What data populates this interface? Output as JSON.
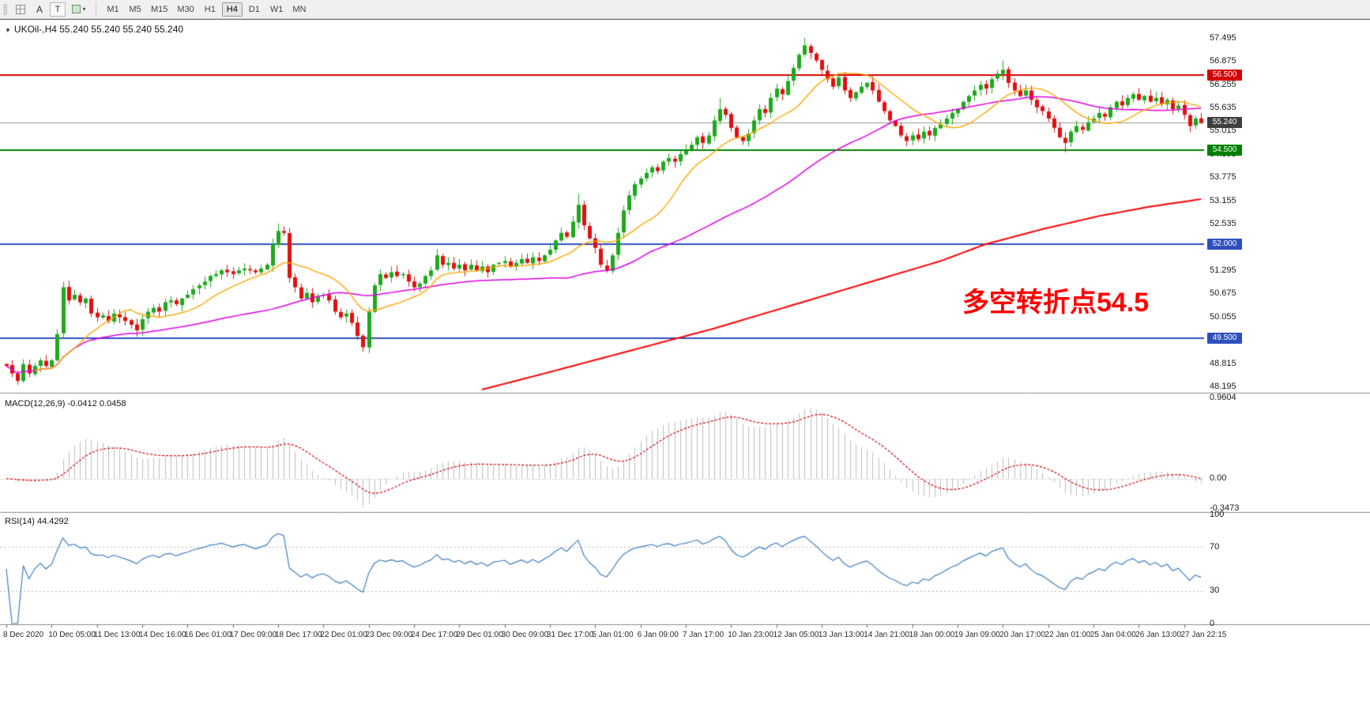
{
  "toolbar": {
    "tool_a": "A",
    "tool_t": "T",
    "caret": "▾",
    "timeframes": [
      "M1",
      "M5",
      "M15",
      "M30",
      "H1",
      "H4",
      "D1",
      "W1",
      "MN"
    ],
    "selected_timeframe": "H4"
  },
  "main_chart": {
    "title": "UKOil-,H4 55.240 55.240 55.240 55.240",
    "collapse_icon": "▼",
    "annotation": {
      "text": "多空转折点54.5",
      "color": "#FF0000"
    }
  },
  "price_axis": {
    "labels": [
      "57.495",
      "56.875",
      "56.255",
      "55.635",
      "55.015",
      "54.395",
      "53.775",
      "53.155",
      "52.535",
      "51.915",
      "51.295",
      "50.675",
      "50.055",
      "49.435",
      "48.815",
      "48.195"
    ],
    "badges": [
      {
        "text": "56.500",
        "price": 56.5,
        "color": "#D40000"
      },
      {
        "text": "55.240",
        "price": 55.24,
        "color": "#3F3F3F"
      },
      {
        "text": "54.500",
        "price": 54.5,
        "color": "#008000"
      },
      {
        "text": "52.000",
        "price": 52.0,
        "color": "#2F4FBF"
      },
      {
        "text": "49.500",
        "price": 49.5,
        "color": "#2F4FBF"
      }
    ]
  },
  "macd_panel": {
    "label": "MACD(12,26,9) -0.0412 0.0458",
    "axis_labels": [
      "0.9604",
      "0.00",
      "-0.3473"
    ],
    "axis_values": [
      0.9604,
      0,
      -0.3473
    ]
  },
  "rsi_panel": {
    "label": "RSI(14) 44.4292",
    "axis_labels": [
      "100",
      "70",
      "30",
      "0"
    ],
    "axis_values": [
      100,
      70,
      30,
      0
    ]
  },
  "time_axis": {
    "labels": [
      "8 Dec 2020",
      "10 Dec 05:00",
      "11 Dec 13:00",
      "14 Dec 16:00",
      "16 Dec 01:00",
      "17 Dec 09:00",
      "18 Dec 17:00",
      "22 Dec 01:00",
      "23 Dec 09:00",
      "24 Dec 17:00",
      "29 Dec 01:00",
      "30 Dec 09:00",
      "31 Dec 17:00",
      "5 Jan 01:00",
      "6 Jan 09:00",
      "7 Jan 17:00",
      "10 Jan 23:00",
      "12 Jan 05:00",
      "13 Jan 13:00",
      "14 Jan 21:00",
      "18 Jan 00:00",
      "19 Jan 09:00",
      "20 Jan 17:00",
      "22 Jan 01:00",
      "25 Jan 04:00",
      "26 Jan 13:00",
      "27 Jan 22:15"
    ]
  },
  "chart_data": {
    "type": "candlestick",
    "symbol": "UKOil-",
    "timeframe": "H4",
    "last_price": 55.24,
    "bars": 212,
    "bars_per_label": 8,
    "y_range": [
      48.1,
      57.88
    ],
    "candle_colors": {
      "up": "#1CAA1C",
      "down": "#E01010"
    },
    "closes": [
      48.75,
      48.55,
      48.35,
      48.8,
      48.55,
      48.75,
      48.9,
      48.75,
      48.9,
      49.6,
      50.85,
      50.5,
      50.65,
      50.45,
      50.55,
      50.15,
      50.05,
      50.1,
      49.95,
      50.15,
      50.05,
      49.95,
      49.85,
      49.7,
      50.0,
      50.2,
      50.3,
      50.2,
      50.45,
      50.5,
      50.4,
      50.55,
      50.65,
      50.8,
      50.9,
      51.0,
      51.15,
      51.2,
      51.3,
      51.25,
      51.2,
      51.3,
      51.35,
      51.3,
      51.25,
      51.35,
      51.45,
      52.0,
      52.35,
      52.3,
      51.1,
      50.85,
      50.55,
      50.7,
      50.45,
      50.6,
      50.65,
      50.5,
      50.2,
      50.05,
      50.15,
      49.9,
      49.55,
      49.25,
      50.2,
      50.9,
      51.2,
      51.1,
      51.25,
      51.15,
      51.2,
      51.0,
      50.85,
      50.95,
      51.15,
      51.3,
      51.7,
      51.45,
      51.5,
      51.35,
      51.45,
      51.3,
      51.45,
      51.3,
      51.4,
      51.25,
      51.45,
      51.5,
      51.55,
      51.4,
      51.5,
      51.6,
      51.5,
      51.65,
      51.55,
      51.7,
      51.85,
      52.1,
      52.3,
      52.2,
      52.6,
      53.05,
      52.5,
      52.15,
      51.9,
      51.45,
      51.3,
      51.7,
      52.3,
      52.9,
      53.3,
      53.6,
      53.75,
      53.9,
      54.05,
      53.95,
      54.2,
      54.3,
      54.2,
      54.4,
      54.5,
      54.65,
      54.85,
      54.7,
      54.9,
      55.3,
      55.6,
      55.45,
      55.1,
      54.85,
      54.75,
      54.95,
      55.3,
      55.6,
      55.5,
      55.9,
      56.15,
      56.0,
      56.35,
      56.7,
      57.05,
      57.3,
      57.1,
      56.9,
      56.65,
      56.4,
      56.2,
      56.45,
      56.1,
      55.9,
      56.05,
      56.2,
      56.3,
      56.1,
      55.8,
      55.55,
      55.3,
      55.15,
      54.9,
      54.75,
      54.9,
      54.8,
      55.0,
      54.9,
      55.1,
      55.2,
      55.35,
      55.5,
      55.6,
      55.8,
      55.95,
      56.1,
      56.25,
      56.15,
      56.4,
      56.55,
      56.65,
      56.3,
      56.1,
      55.95,
      56.1,
      55.85,
      55.65,
      55.55,
      55.35,
      55.1,
      54.85,
      54.7,
      55.0,
      55.15,
      55.05,
      55.25,
      55.35,
      55.5,
      55.4,
      55.65,
      55.8,
      55.7,
      55.9,
      56.0,
      55.85,
      55.95,
      55.8,
      55.9,
      55.75,
      55.85,
      55.6,
      55.7,
      55.45,
      55.15,
      55.35,
      55.24
    ],
    "wick_overrides": [
      {
        "bar": 2,
        "low": 48.25
      },
      {
        "bar": 10,
        "high": 51.0
      },
      {
        "bar": 48,
        "high": 52.55
      },
      {
        "bar": 63,
        "low": 49.15
      },
      {
        "bar": 101,
        "high": 53.35
      },
      {
        "bar": 126,
        "high": 55.9
      },
      {
        "bar": 141,
        "high": 57.5
      },
      {
        "bar": 176,
        "high": 56.9
      },
      {
        "bar": 187,
        "low": 54.45
      },
      {
        "bar": 209,
        "low": 55.0
      }
    ],
    "horizontal_lines": [
      {
        "price": 56.5,
        "color": "#D40000",
        "width": 2
      },
      {
        "price": 54.5,
        "color": "#008000",
        "width": 2
      },
      {
        "price": 52.0,
        "color": "#2F4FBF",
        "width": 2
      },
      {
        "price": 49.5,
        "color": "#2F4FBF",
        "width": 2
      },
      {
        "price": 55.24,
        "color": "#9A9A9A",
        "width": 1
      }
    ],
    "moving_averages": [
      {
        "name": "fast",
        "period": 13,
        "color": "#FFA500"
      },
      {
        "name": "medium",
        "period": 50,
        "color": "#E000E0"
      },
      {
        "name": "slow",
        "color": "#FF0000",
        "path": [
          [
            84,
            48.12
          ],
          [
            95,
            48.55
          ],
          [
            105,
            48.95
          ],
          [
            115,
            49.35
          ],
          [
            125,
            49.75
          ],
          [
            135,
            50.2
          ],
          [
            145,
            50.65
          ],
          [
            155,
            51.1
          ],
          [
            165,
            51.55
          ],
          [
            173,
            52.0
          ],
          [
            183,
            52.4
          ],
          [
            193,
            52.75
          ],
          [
            202,
            53.0
          ],
          [
            211,
            53.2
          ]
        ]
      }
    ],
    "macd": {
      "fast": 12,
      "slow": 26,
      "signal": 9,
      "range": [
        -0.3473,
        0.9604
      ],
      "histogram_color": "#BDBDBD",
      "signal_color": "#D40000"
    },
    "rsi": {
      "period": 14,
      "range": [
        0,
        100
      ],
      "levels": [
        30,
        70
      ],
      "color": "#3E7DC0"
    }
  }
}
